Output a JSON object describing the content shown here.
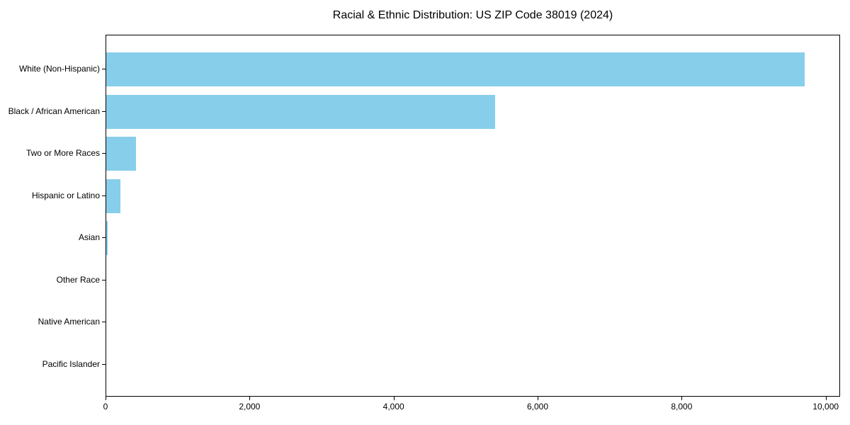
{
  "figure": {
    "background": "#ffffff",
    "axis_color": "#000000",
    "text_color": "#000000"
  },
  "chart_data": {
    "type": "bar",
    "orientation": "horizontal",
    "title": "Racial & Ethnic Distribution: US ZIP Code 38019 (2024)",
    "categories": [
      "White (Non-Hispanic)",
      "Black / African American",
      "Two or More Races",
      "Hispanic or Latino",
      "Asian",
      "Other Race",
      "Native American",
      "Pacific Islander"
    ],
    "values": [
      9700,
      5400,
      410,
      200,
      20,
      0,
      0,
      0
    ],
    "bar_color": "#87ceeb",
    "xlabel": "",
    "ylabel": "",
    "xlim": [
      0,
      10180
    ],
    "x_ticks": [
      0,
      2000,
      4000,
      6000,
      8000,
      10000
    ],
    "x_tick_labels": [
      "0",
      "2,000",
      "4,000",
      "6,000",
      "8,000",
      "10,000"
    ],
    "grid": false,
    "legend": null
  }
}
